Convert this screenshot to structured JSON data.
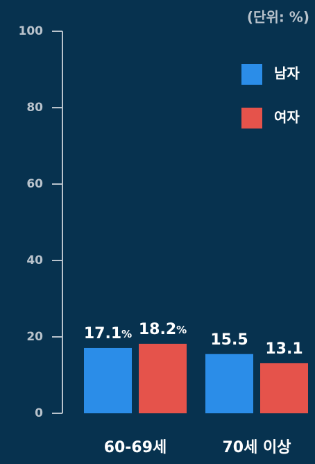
{
  "chart_data": {
    "type": "bar",
    "unit_label": "(단위: %)",
    "categories": [
      "60-69세",
      "70세 이상"
    ],
    "series": [
      {
        "name": "남자",
        "color": "#2b8de8",
        "values": [
          17.1,
          15.5
        ],
        "value_labels": [
          "17.1%",
          "15.5"
        ]
      },
      {
        "name": "여자",
        "color": "#e5534b",
        "values": [
          18.2,
          13.1
        ],
        "value_labels": [
          "18.2%",
          "13.1"
        ]
      }
    ],
    "ylim": [
      0,
      100
    ],
    "yticks": [
      0,
      20,
      40,
      60,
      80,
      100
    ]
  }
}
